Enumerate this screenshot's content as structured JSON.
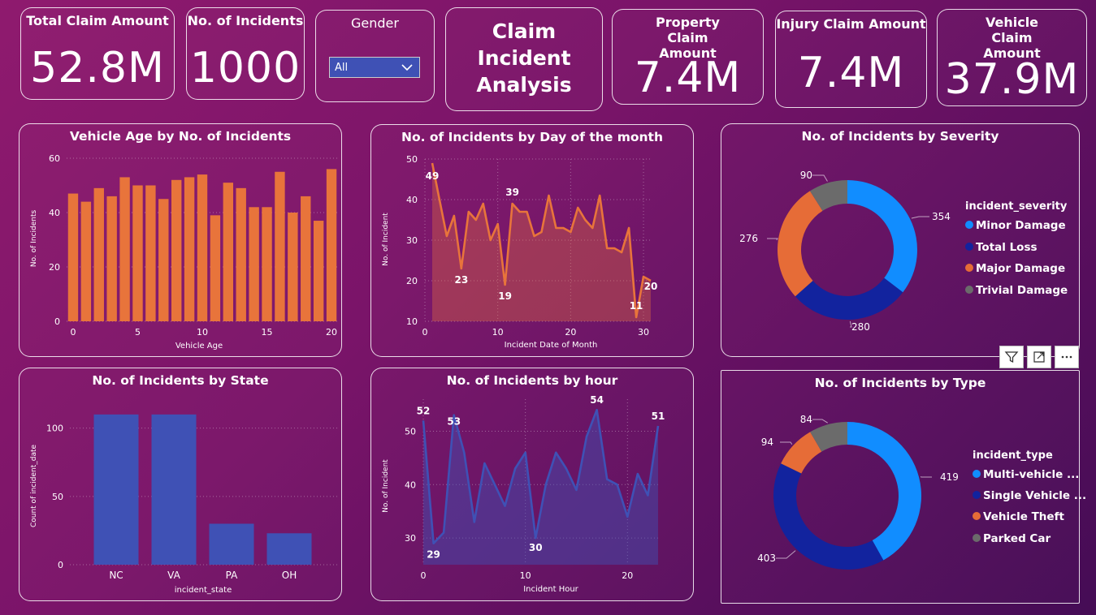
{
  "kpis": {
    "total_claim": {
      "label": "Total Claim Amount",
      "value": "52.8M"
    },
    "incidents": {
      "label": "No. of Incidents",
      "value": "1000"
    },
    "property": {
      "label": "Property Claim Amount",
      "value": "7.4M"
    },
    "injury": {
      "label": "Injury Claim Amount",
      "value": "7.4M"
    },
    "vehicle": {
      "label": "Vehicle Claim Amount",
      "value": "37.9M"
    }
  },
  "slicer": {
    "label": "Gender",
    "selected": "All"
  },
  "report_title": {
    "line1": "Claim",
    "line2": "Incident",
    "line3": "Analysis"
  },
  "chart_data": [
    {
      "id": "vehicle_age",
      "type": "bar",
      "title": "Vehicle Age by No. of Incidents",
      "xlabel": "Vehicle Age",
      "ylabel": "No. of Incidents",
      "x": [
        0,
        1,
        2,
        3,
        4,
        5,
        6,
        7,
        8,
        9,
        10,
        11,
        12,
        13,
        14,
        15,
        16,
        17,
        18,
        19,
        20
      ],
      "values": [
        47,
        44,
        49,
        46,
        53,
        50,
        50,
        45,
        52,
        53,
        54,
        39,
        51,
        49,
        42,
        42,
        55,
        40,
        46,
        37,
        56
      ],
      "ylim": [
        0,
        60
      ],
      "yticks": [
        0,
        20,
        40,
        60
      ],
      "xticks": [
        0,
        5,
        10,
        15,
        20
      ],
      "color": "#e8743b"
    },
    {
      "id": "day_of_month",
      "type": "area",
      "title": "No. of Incidents by Day of the month",
      "xlabel": "Incident Date of Month",
      "ylabel": "No. of Incident",
      "x": [
        1,
        2,
        3,
        4,
        5,
        6,
        7,
        8,
        9,
        10,
        11,
        12,
        13,
        14,
        15,
        16,
        17,
        18,
        19,
        20,
        21,
        22,
        23,
        24,
        25,
        26,
        27,
        28,
        29,
        30,
        31
      ],
      "values": [
        49,
        40,
        31,
        36,
        23,
        37,
        35,
        39,
        30,
        34,
        19,
        39,
        37,
        37,
        31,
        32,
        41,
        33,
        33,
        32,
        38,
        35,
        33,
        41,
        28,
        28,
        27,
        33,
        11,
        21,
        20
      ],
      "labels": [
        {
          "x": 1,
          "text": "49"
        },
        {
          "x": 5,
          "text": "23"
        },
        {
          "x": 11,
          "text": "19"
        },
        {
          "x": 12,
          "text": "39"
        },
        {
          "x": 29,
          "text": "11"
        },
        {
          "x": 31,
          "text": "20"
        }
      ],
      "ylim": [
        10,
        50
      ],
      "yticks": [
        10,
        20,
        30,
        40,
        50
      ],
      "xticks": [
        0,
        10,
        20,
        30
      ],
      "color": "#e8743b"
    },
    {
      "id": "severity",
      "type": "pie",
      "title": "No. of Incidents by Severity",
      "legend_title": "incident_severity",
      "slices": [
        {
          "name": "Minor Damage",
          "value": 354,
          "label": "354",
          "color": "#118dff"
        },
        {
          "name": "Total Loss",
          "value": 280,
          "label": "280",
          "color": "#12239e"
        },
        {
          "name": "Major Damage",
          "value": 276,
          "label": "276",
          "color": "#e66c37"
        },
        {
          "name": "Trivial Damage",
          "value": 90,
          "label": "90",
          "color": "#6b6b6b"
        }
      ]
    },
    {
      "id": "state",
      "type": "bar",
      "title": "No. of Incidents by State",
      "xlabel": "incident_state",
      "ylabel": "Count of incident_date",
      "categories": [
        "NC",
        "VA",
        "PA",
        "OH"
      ],
      "values": [
        110,
        110,
        30,
        23
      ],
      "ylim": [
        0,
        120
      ],
      "yticks": [
        0,
        50,
        100
      ],
      "color": "#3f51b5"
    },
    {
      "id": "hour",
      "type": "area",
      "title": "No. of Incidents by hour",
      "xlabel": "Incident Hour",
      "ylabel": "No. of Incident",
      "x": [
        0,
        1,
        2,
        3,
        4,
        5,
        6,
        7,
        8,
        9,
        10,
        11,
        12,
        13,
        14,
        15,
        16,
        17,
        18,
        19,
        20,
        21,
        22,
        23
      ],
      "values": [
        52,
        29,
        31,
        53,
        46,
        33,
        44,
        40,
        36,
        43,
        46,
        30,
        40,
        46,
        43,
        39,
        49,
        54,
        41,
        40,
        34,
        42,
        38,
        51
      ],
      "labels": [
        {
          "x": 0,
          "text": "52"
        },
        {
          "x": 1,
          "text": "29"
        },
        {
          "x": 3,
          "text": "53"
        },
        {
          "x": 11,
          "text": "30"
        },
        {
          "x": 17,
          "text": "54"
        },
        {
          "x": 23,
          "text": "51"
        }
      ],
      "ylim": [
        25,
        56
      ],
      "yticks": [
        30,
        40,
        50
      ],
      "xticks": [
        0,
        10,
        20
      ],
      "color": "#3f51b5"
    },
    {
      "id": "type",
      "type": "pie",
      "title": "No. of Incidents by Type",
      "legend_title": "incident_type",
      "slices": [
        {
          "name": "Multi-vehicle ...",
          "value": 419,
          "label": "419",
          "color": "#118dff"
        },
        {
          "name": "Single Vehicle ...",
          "value": 403,
          "label": "403",
          "color": "#12239e"
        },
        {
          "name": "Vehicle Theft",
          "value": 94,
          "label": "94",
          "color": "#e66c37"
        },
        {
          "name": "Parked Car",
          "value": 84,
          "label": "84",
          "color": "#6b6b6b"
        }
      ]
    }
  ]
}
